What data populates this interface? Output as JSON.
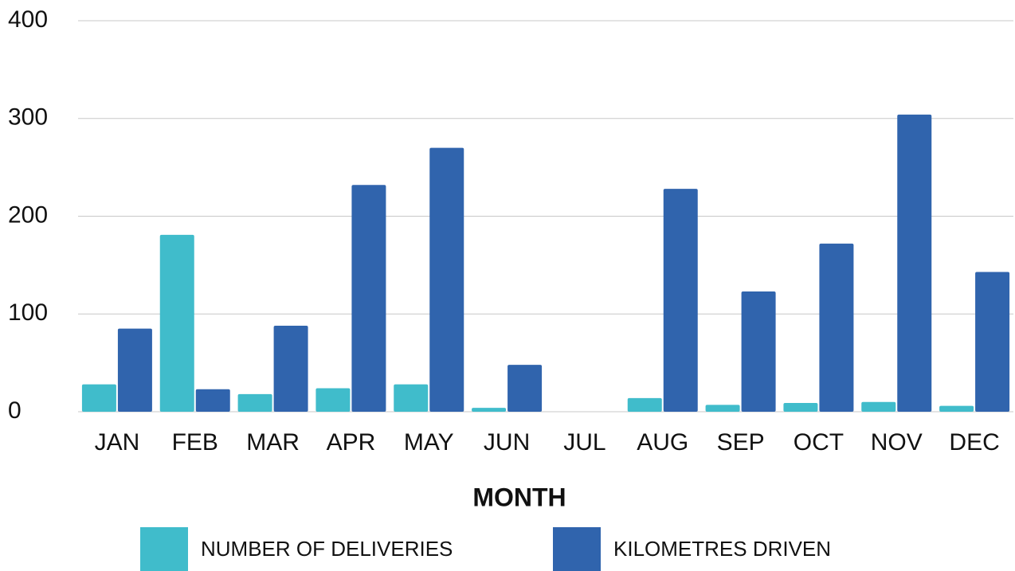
{
  "chart_data": {
    "type": "bar",
    "x_label": "MONTH",
    "categories": [
      "JAN",
      "FEB",
      "MAR",
      "APR",
      "MAY",
      "JUN",
      "JUL",
      "AUG",
      "SEP",
      "OCT",
      "NOV",
      "DEC"
    ],
    "series": [
      {
        "name": "NUMBER OF DELIVERIES",
        "color": "#40bccb",
        "values": [
          28,
          181,
          18,
          24,
          28,
          4,
          0,
          14,
          7,
          9,
          10,
          6
        ]
      },
      {
        "name": "KILOMETRES DRIVEN",
        "color": "#3064ad",
        "values": [
          85,
          23,
          88,
          232,
          270,
          48,
          0,
          228,
          123,
          172,
          304,
          143
        ]
      }
    ],
    "ylim": [
      0,
      400
    ],
    "yticks": [
      0,
      100,
      200,
      300,
      400
    ],
    "grid": true
  }
}
